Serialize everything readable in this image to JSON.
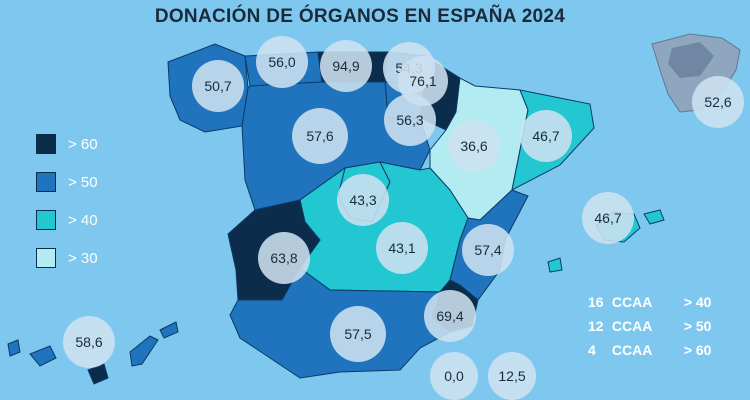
{
  "title": "DONACIÓN DE ÓRGANOS EN ESPAÑA 2024",
  "colors": {
    "background": "#7ec8ef",
    "gt60": "#0b2c4a",
    "gt50": "#1f74bd",
    "gt40": "#22c7d2",
    "gt30": "#b2ecf2"
  },
  "legend": [
    {
      "label": "> 60",
      "color": "#0b2c4a"
    },
    {
      "label": "> 50",
      "color": "#1f74bd"
    },
    {
      "label": "> 40",
      "color": "#22c7d2"
    },
    {
      "label": "> 30",
      "color": "#b2ecf2"
    }
  ],
  "regions": [
    {
      "name": "Galicia",
      "value": "50,7"
    },
    {
      "name": "Asturias",
      "value": "56,0"
    },
    {
      "name": "Cantabria",
      "value": "94,9"
    },
    {
      "name": "País Vasco",
      "value": "54,3"
    },
    {
      "name": "Navarra",
      "value": "76,1"
    },
    {
      "name": "La Rioja",
      "value": "56,3"
    },
    {
      "name": "Castilla y León",
      "value": "57,6"
    },
    {
      "name": "Aragón",
      "value": "36,6"
    },
    {
      "name": "Cataluña",
      "value": "46,7"
    },
    {
      "name": "Madrid",
      "value": "43,3"
    },
    {
      "name": "Castilla-La Mancha",
      "value": "43,1"
    },
    {
      "name": "Extremadura",
      "value": "63,8"
    },
    {
      "name": "Comunidad Valenciana",
      "value": "57,4"
    },
    {
      "name": "Murcia",
      "value": "69,4"
    },
    {
      "name": "Andalucía",
      "value": "57,5"
    },
    {
      "name": "Islas Baleares",
      "value": "46,7"
    },
    {
      "name": "Canarias",
      "value": "58,6"
    },
    {
      "name": "Ceuta",
      "value": "0,0"
    },
    {
      "name": "Melilla",
      "value": "12,5"
    },
    {
      "name": "España",
      "value": "52,6"
    }
  ],
  "summary": [
    {
      "count": "16",
      "label": "CCAA",
      "threshold": "> 40"
    },
    {
      "count": "12",
      "label": "CCAA",
      "threshold": "> 50"
    },
    {
      "count": "4",
      "label": "CCAA",
      "threshold": "> 60"
    }
  ]
}
